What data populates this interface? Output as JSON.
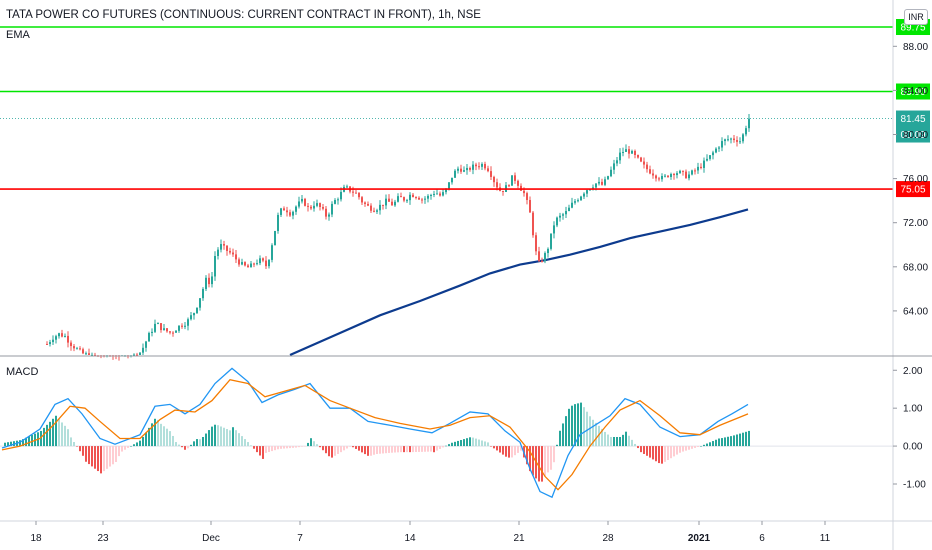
{
  "header": {
    "title": "TATA POWER CO FUTURES (CONTINUOUS: CURRENT CONTRACT IN FRONT), 1h, NSE",
    "ema_label": "EMA",
    "macd_label": "MACD",
    "currency": "INR"
  },
  "colors": {
    "up": "#26a69a",
    "down": "#ef5350",
    "green_line": "#00e600",
    "red_line": "#ff0000",
    "ema": "#0d3b8e",
    "macd": "#2196f3",
    "signal": "#f57c00",
    "hist_up_strong": "#26a69a",
    "hist_up_weak": "#b2dfdb",
    "hist_down_strong": "#ef5350",
    "hist_down_weak": "#ffcdd2"
  },
  "chart_data": [
    {
      "type": "candlestick",
      "title": "TATA POWER CO FUTURES (CONTINUOUS: CURRENT CONTRACT IN FRONT), 1h, NSE",
      "x_ticks": [
        "18",
        "23",
        "Dec",
        "7",
        "14",
        "21",
        "28",
        "2021",
        "6",
        "11"
      ],
      "x_tick_pos": [
        36,
        103,
        211,
        300,
        410,
        519,
        608,
        699,
        762,
        825
      ],
      "y_ticks": [
        64.0,
        68.0,
        72.0,
        76.0,
        80.0,
        84.0,
        88.0
      ],
      "ylim": [
        60.0,
        92.2
      ],
      "horizontal_levels": [
        {
          "label": "89.75",
          "value": 89.75,
          "color": "#00e600"
        },
        {
          "label": "83.90",
          "value": 83.9,
          "color": "#00e600"
        },
        {
          "label": "75.05",
          "value": 75.05,
          "color": "#ff0000"
        }
      ],
      "last_price": {
        "label": "81.45",
        "value": 81.45
      },
      "countdown": "00:09",
      "ema_series": [
        [
          290,
          59.8
        ],
        [
          340,
          62.0
        ],
        [
          380,
          63.6
        ],
        [
          420,
          64.9
        ],
        [
          460,
          66.3
        ],
        [
          490,
          67.4
        ],
        [
          520,
          68.2
        ],
        [
          545,
          68.6
        ],
        [
          570,
          69.1
        ],
        [
          600,
          69.8
        ],
        [
          630,
          70.6
        ],
        [
          660,
          71.2
        ],
        [
          690,
          71.8
        ],
        [
          720,
          72.5
        ],
        [
          748,
          73.2
        ]
      ],
      "price_path": [
        [
          46,
          61.0
        ],
        [
          52,
          61.6
        ],
        [
          58,
          61.9
        ],
        [
          64,
          61.7
        ],
        [
          70,
          61.0
        ],
        [
          80,
          60.2
        ],
        [
          100,
          59.5
        ],
        [
          120,
          59.2
        ],
        [
          140,
          60.3
        ],
        [
          148,
          61.8
        ],
        [
          155,
          62.9
        ],
        [
          162,
          62.3
        ],
        [
          170,
          62.0
        ],
        [
          178,
          62.6
        ],
        [
          186,
          63.0
        ],
        [
          194,
          64.0
        ],
        [
          200,
          65.5
        ],
        [
          205,
          66.8
        ],
        [
          210,
          66.5
        ],
        [
          214,
          69.0
        ],
        [
          219,
          70.0
        ],
        [
          224,
          69.6
        ],
        [
          230,
          69.2
        ],
        [
          236,
          68.6
        ],
        [
          242,
          68.1
        ],
        [
          248,
          67.9
        ],
        [
          254,
          68.4
        ],
        [
          260,
          68.6
        ],
        [
          266,
          68.0
        ],
        [
          272,
          70.5
        ],
        [
          278,
          73.0
        ],
        [
          284,
          73.3
        ],
        [
          290,
          72.8
        ],
        [
          296,
          73.6
        ],
        [
          302,
          74.0
        ],
        [
          308,
          73.2
        ],
        [
          314,
          73.8
        ],
        [
          320,
          73.3
        ],
        [
          326,
          72.5
        ],
        [
          332,
          73.8
        ],
        [
          338,
          74.4
        ],
        [
          344,
          75.2
        ],
        [
          350,
          74.9
        ],
        [
          356,
          74.6
        ],
        [
          362,
          73.8
        ],
        [
          368,
          73.4
        ],
        [
          374,
          73.2
        ],
        [
          380,
          73.6
        ],
        [
          386,
          74.0
        ],
        [
          392,
          73.6
        ],
        [
          398,
          74.3
        ],
        [
          404,
          74.1
        ],
        [
          410,
          74.6
        ],
        [
          416,
          74.4
        ],
        [
          422,
          74.1
        ],
        [
          428,
          74.4
        ],
        [
          434,
          74.8
        ],
        [
          440,
          74.4
        ],
        [
          446,
          75.1
        ],
        [
          452,
          76.4
        ],
        [
          458,
          77.0
        ],
        [
          464,
          76.6
        ],
        [
          470,
          77.0
        ],
        [
          476,
          77.2
        ],
        [
          482,
          77.3
        ],
        [
          488,
          76.8
        ],
        [
          494,
          75.6
        ],
        [
          500,
          74.8
        ],
        [
          506,
          75.3
        ],
        [
          512,
          76.2
        ],
        [
          518,
          75.4
        ],
        [
          524,
          74.5
        ],
        [
          530,
          72.5
        ],
        [
          534,
          69.6
        ],
        [
          538,
          68.3
        ],
        [
          542,
          68.8
        ],
        [
          546,
          69.4
        ],
        [
          550,
          70.8
        ],
        [
          554,
          72.2
        ],
        [
          560,
          72.6
        ],
        [
          566,
          73.0
        ],
        [
          572,
          73.8
        ],
        [
          578,
          74.3
        ],
        [
          584,
          74.9
        ],
        [
          590,
          75.3
        ],
        [
          596,
          75.6
        ],
        [
          602,
          75.4
        ],
        [
          608,
          76.4
        ],
        [
          614,
          77.4
        ],
        [
          620,
          78.4
        ],
        [
          626,
          78.6
        ],
        [
          632,
          78.2
        ],
        [
          638,
          77.6
        ],
        [
          644,
          77.0
        ],
        [
          650,
          76.6
        ],
        [
          656,
          76.2
        ],
        [
          662,
          76.0
        ],
        [
          668,
          76.4
        ],
        [
          674,
          76.6
        ],
        [
          680,
          76.5
        ],
        [
          686,
          76.2
        ],
        [
          692,
          76.6
        ],
        [
          698,
          77.0
        ],
        [
          704,
          77.5
        ],
        [
          710,
          78.1
        ],
        [
          716,
          78.8
        ],
        [
          722,
          79.4
        ],
        [
          728,
          79.6
        ],
        [
          734,
          79.6
        ],
        [
          740,
          79.4
        ],
        [
          744,
          80.5
        ],
        [
          748,
          81.45
        ]
      ]
    },
    {
      "type": "macd",
      "title": "MACD",
      "y_ticks": [
        2.0,
        1.0,
        0.0,
        -1.0
      ],
      "ylim": [
        -1.95,
        2.35
      ],
      "macd_series": [
        [
          2,
          -0.05
        ],
        [
          20,
          0.1
        ],
        [
          40,
          0.45
        ],
        [
          55,
          1.1
        ],
        [
          68,
          1.25
        ],
        [
          82,
          0.85
        ],
        [
          100,
          0.2
        ],
        [
          115,
          0.05
        ],
        [
          140,
          0.3
        ],
        [
          155,
          1.05
        ],
        [
          170,
          1.1
        ],
        [
          185,
          0.85
        ],
        [
          200,
          1.1
        ],
        [
          215,
          1.65
        ],
        [
          232,
          2.05
        ],
        [
          248,
          1.7
        ],
        [
          262,
          1.15
        ],
        [
          278,
          1.35
        ],
        [
          295,
          1.5
        ],
        [
          310,
          1.65
        ],
        [
          330,
          1.0
        ],
        [
          350,
          1.0
        ],
        [
          368,
          0.65
        ],
        [
          390,
          0.55
        ],
        [
          410,
          0.45
        ],
        [
          432,
          0.35
        ],
        [
          450,
          0.6
        ],
        [
          470,
          0.9
        ],
        [
          488,
          0.85
        ],
        [
          505,
          0.4
        ],
        [
          520,
          0.1
        ],
        [
          530,
          -0.6
        ],
        [
          540,
          -1.2
        ],
        [
          552,
          -1.35
        ],
        [
          568,
          -0.25
        ],
        [
          580,
          0.3
        ],
        [
          595,
          0.55
        ],
        [
          610,
          0.8
        ],
        [
          625,
          1.25
        ],
        [
          640,
          1.1
        ],
        [
          660,
          0.5
        ],
        [
          680,
          0.25
        ],
        [
          700,
          0.3
        ],
        [
          718,
          0.65
        ],
        [
          732,
          0.85
        ],
        [
          748,
          1.1
        ]
      ],
      "signal_series": [
        [
          2,
          -0.1
        ],
        [
          20,
          0.0
        ],
        [
          40,
          0.2
        ],
        [
          55,
          0.6
        ],
        [
          70,
          1.05
        ],
        [
          85,
          1.0
        ],
        [
          100,
          0.65
        ],
        [
          120,
          0.2
        ],
        [
          140,
          0.2
        ],
        [
          160,
          0.7
        ],
        [
          175,
          0.95
        ],
        [
          195,
          0.9
        ],
        [
          212,
          1.2
        ],
        [
          230,
          1.75
        ],
        [
          248,
          1.65
        ],
        [
          265,
          1.3
        ],
        [
          285,
          1.45
        ],
        [
          305,
          1.6
        ],
        [
          330,
          1.2
        ],
        [
          350,
          1.0
        ],
        [
          375,
          0.75
        ],
        [
          400,
          0.6
        ],
        [
          430,
          0.45
        ],
        [
          450,
          0.55
        ],
        [
          470,
          0.75
        ],
        [
          490,
          0.8
        ],
        [
          510,
          0.5
        ],
        [
          530,
          -0.15
        ],
        [
          545,
          -0.8
        ],
        [
          558,
          -1.15
        ],
        [
          572,
          -0.75
        ],
        [
          590,
          0.0
        ],
        [
          605,
          0.5
        ],
        [
          620,
          0.95
        ],
        [
          640,
          1.2
        ],
        [
          660,
          0.8
        ],
        [
          680,
          0.35
        ],
        [
          700,
          0.3
        ],
        [
          720,
          0.55
        ],
        [
          748,
          0.85
        ]
      ]
    }
  ]
}
